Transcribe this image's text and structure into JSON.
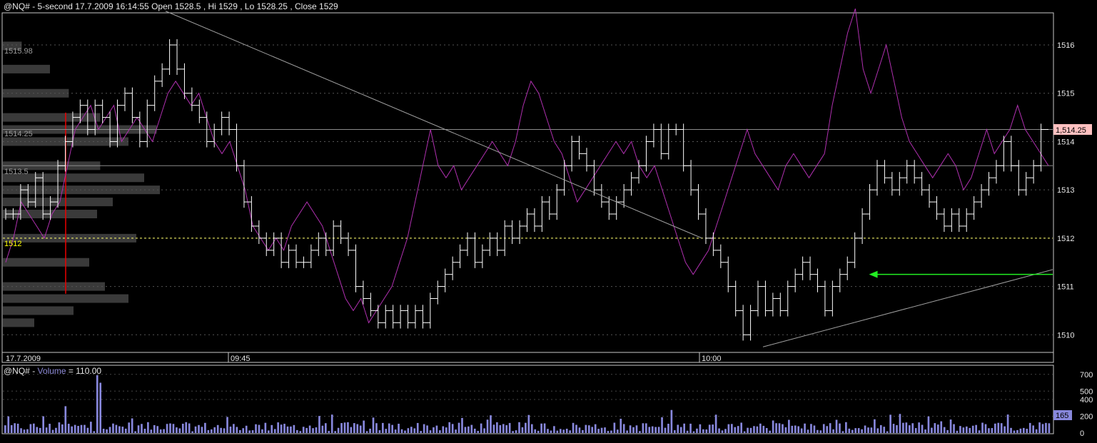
{
  "colors": {
    "background": "#000000",
    "frame": "#c8c8c8",
    "price_bars": "#ffffff",
    "overlay_line": "#b030b0",
    "volume_bars": "#8888dd",
    "profile": "#3a3a3a",
    "poc_line": "#ffff66",
    "trend_line": "#a0a0a0",
    "arrow": "#22ee22",
    "last_price_tag": "#ffc0c0"
  },
  "header": {
    "symbol": "@NQ#",
    "interval": "5-second",
    "date": "17.7.2009",
    "time": "16:14:55",
    "open_label": "Open",
    "open": "1528.5",
    "high_label": "Hi",
    "high": "1529",
    "low_label": "Lo",
    "low": "1528.25",
    "close_label": "Close",
    "close": "1529"
  },
  "price_panel": {
    "last_price_tag": "1,514.25",
    "volume_profile_labels": [
      "1515.98",
      "1514.25",
      "1513.5"
    ],
    "poc_label": "1512",
    "time_labels": [
      "17.7.2009",
      "09:45",
      "10:00"
    ]
  },
  "volume_panel": {
    "symbol": "@NQ#",
    "separator": " - ",
    "name": "Volume",
    "equals": " = ",
    "value": "110.00",
    "last_tag": "165"
  },
  "chart_data": [
    {
      "type": "bar",
      "subtype": "ohlc-step",
      "interval": "5-second",
      "ylim": [
        1509.65,
        1516.65
      ],
      "yticks": [
        1510,
        1511,
        1512,
        1513,
        1514,
        1515,
        1516
      ],
      "yticks_labels": [
        "1510",
        "1511",
        "1512",
        "1513",
        "1514",
        "1515",
        "1516"
      ],
      "horizontal_levels": [
        1514.25,
        1513.5,
        1512
      ],
      "xlabels": [
        "17.7.2009",
        "09:45",
        "10:00"
      ],
      "close_path": [
        1512.5,
        1512.5,
        1513,
        1512.75,
        1513.25,
        1512.5,
        1512.75,
        1513.5,
        1514,
        1514.5,
        1514.75,
        1514.25,
        1514.75,
        1514.5,
        1514,
        1514.75,
        1515,
        1514.5,
        1514,
        1514.75,
        1515.25,
        1515.5,
        1516,
        1515.5,
        1515,
        1514.75,
        1514.5,
        1514,
        1514.25,
        1514.5,
        1514.25,
        1513.5,
        1512.75,
        1512.25,
        1512,
        1511.75,
        1512,
        1511.5,
        1511.75,
        1511.5,
        1511.5,
        1511.75,
        1512,
        1511.75,
        1512.25,
        1512,
        1511.75,
        1511,
        1510.75,
        1510.5,
        1510.25,
        1510.5,
        1510.25,
        1510.5,
        1510.25,
        1510.5,
        1510.25,
        1510.75,
        1511,
        1511.25,
        1511.5,
        1511.75,
        1512,
        1511.5,
        1511.75,
        1512,
        1511.75,
        1512.25,
        1512,
        1512.25,
        1512.5,
        1512.25,
        1512.75,
        1512.5,
        1513,
        1513.5,
        1514,
        1513.75,
        1513.5,
        1513,
        1512.75,
        1512.5,
        1512.75,
        1513,
        1513.25,
        1513.5,
        1514,
        1514.25,
        1513.75,
        1514.25,
        1514.25,
        1513.5,
        1513,
        1512.5,
        1512,
        1511.75,
        1511.5,
        1511,
        1510.5,
        1510,
        1510.5,
        1511,
        1510.5,
        1510.75,
        1510.5,
        1511,
        1511.25,
        1511.5,
        1511.25,
        1511,
        1510.5,
        1511,
        1511.25,
        1511.5,
        1512,
        1512.5,
        1513,
        1513.5,
        1513.25,
        1513,
        1513.25,
        1513.5,
        1513.25,
        1513,
        1512.75,
        1512.5,
        1512.25,
        1512.5,
        1512.25,
        1512.5,
        1512.75,
        1513,
        1513.25,
        1513.5,
        1514,
        1513.5,
        1513,
        1513.25,
        1513.5,
        1514.25
      ],
      "overlay_line": {
        "color": "#b030b0",
        "values": [
          1511.5,
          1512,
          1512.75,
          1512.5,
          1512.25,
          1512,
          1512.5,
          1512.75,
          1513.5,
          1514.25,
          1514.5,
          1514.75,
          1514.25,
          1514.5,
          1514.75,
          1514,
          1514.25,
          1514.5,
          1514.25,
          1514,
          1514.5,
          1515,
          1515.25,
          1515,
          1514.75,
          1515,
          1514.5,
          1514,
          1513.75,
          1514,
          1513.5,
          1513,
          1512.25,
          1512,
          1511.75,
          1512,
          1511.75,
          1512.25,
          1512.5,
          1512.75,
          1512.5,
          1512.25,
          1511.75,
          1511.25,
          1510.75,
          1510.5,
          1510.75,
          1510.25,
          1510.5,
          1510.75,
          1511,
          1511.5,
          1512,
          1512.75,
          1513.5,
          1514.25,
          1513.5,
          1513.25,
          1513.5,
          1513,
          1513.25,
          1513.5,
          1513.75,
          1514,
          1513.75,
          1513.5,
          1514,
          1514.75,
          1515.25,
          1515,
          1514.5,
          1514,
          1513.75,
          1513.25,
          1512.75,
          1513,
          1513.25,
          1513.5,
          1513.75,
          1514,
          1513.75,
          1514,
          1513.5,
          1513.25,
          1513.5,
          1513,
          1512.5,
          1512,
          1511.5,
          1511.25,
          1511.5,
          1511.75,
          1512.25,
          1512.75,
          1513.25,
          1513.75,
          1514.25,
          1513.75,
          1513.5,
          1513.25,
          1513,
          1513.5,
          1513.75,
          1513.5,
          1513.25,
          1513.5,
          1513.75,
          1514.75,
          1515.5,
          1516.25,
          1516.75,
          1515.5,
          1515,
          1515.5,
          1516,
          1515.25,
          1514.5,
          1514,
          1513.75,
          1513.5,
          1513.25,
          1513.5,
          1513.75,
          1513.5,
          1513,
          1513.25,
          1513.75,
          1514.25,
          1513.75,
          1514,
          1514.25,
          1514.75,
          1514.25,
          1514,
          1513.75,
          1513.5
        ]
      },
      "volume_profile_bins": [
        {
          "price": 1515.98,
          "size": 0.12
        },
        {
          "price": 1515.5,
          "size": 0.3
        },
        {
          "price": 1515.0,
          "size": 0.42
        },
        {
          "price": 1514.5,
          "size": 0.62
        },
        {
          "price": 1514.25,
          "size": 0.98
        },
        {
          "price": 1514.0,
          "size": 0.8
        },
        {
          "price": 1513.5,
          "size": 0.62
        },
        {
          "price": 1513.25,
          "size": 0.9
        },
        {
          "price": 1513.0,
          "size": 1.0
        },
        {
          "price": 1512.75,
          "size": 0.7
        },
        {
          "price": 1512.5,
          "size": 0.6
        },
        {
          "price": 1512.0,
          "size": 0.85
        },
        {
          "price": 1511.5,
          "size": 0.55
        },
        {
          "price": 1511.0,
          "size": 0.65
        },
        {
          "price": 1510.75,
          "size": 0.8
        },
        {
          "price": 1510.5,
          "size": 0.45
        },
        {
          "price": 1510.25,
          "size": 0.2
        }
      ],
      "last_price": 1514.25,
      "annotations": [
        {
          "type": "trendline",
          "from": {
            "x_frac": 0.155,
            "y": 1516.7
          },
          "to": {
            "x_frac": 0.666,
            "y": 1512
          }
        },
        {
          "type": "trendline",
          "from": {
            "x_frac": 0.724,
            "y": 1509.75
          },
          "to": {
            "x_frac": 1.0,
            "y": 1511.35
          }
        },
        {
          "type": "arrow",
          "from": {
            "x_frac": 1.0,
            "y": 1511.25
          },
          "to": {
            "x_frac": 0.825,
            "y": 1511.25
          },
          "color": "#22ee22"
        }
      ]
    },
    {
      "type": "bar",
      "name": "Volume",
      "ylim": [
        0,
        800
      ],
      "yticks": [
        0,
        200,
        400,
        500,
        700
      ],
      "yticks_labels": [
        "0",
        "200",
        "400",
        "500",
        "700"
      ],
      "current_value": 110.0,
      "last_value": 165,
      "spikes": [
        {
          "index": 29,
          "value": 690
        },
        {
          "index": 30,
          "value": 600
        },
        {
          "index": 19,
          "value": 320
        }
      ]
    }
  ]
}
